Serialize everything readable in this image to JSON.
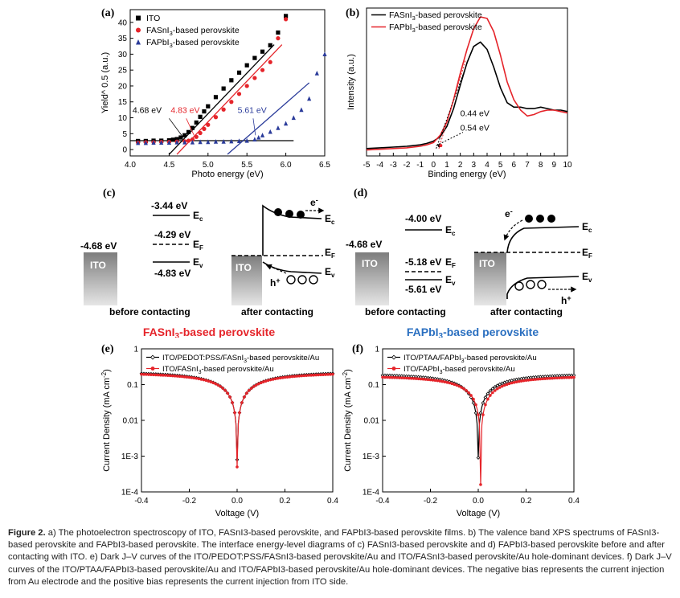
{
  "panels": {
    "a": {
      "label": "(a)",
      "chart_data": {
        "type": "scatter",
        "xlabel": "Photo energy (eV)",
        "ylabel": "Yield^ 0.5 (a.u.)",
        "xlim": [
          4.0,
          6.5
        ],
        "ylim": [
          -2,
          44
        ],
        "xticks": [
          "4.0",
          "4.5",
          "5.0",
          "5.5",
          "6.0",
          "6.5"
        ],
        "yticks": [
          "0",
          "5",
          "10",
          "15",
          "20",
          "25",
          "30",
          "35",
          "40"
        ],
        "legend_position": "top-left",
        "series": [
          {
            "name": "ITO",
            "color": "#000000",
            "marker": "square",
            "x": [
              4.1,
              4.2,
              4.3,
              4.4,
              4.5,
              4.55,
              4.6,
              4.65,
              4.7,
              4.75,
              4.8,
              4.85,
              4.9,
              4.95,
              5.0,
              5.1,
              5.2,
              5.3,
              5.4,
              5.5,
              5.6,
              5.7,
              5.8,
              5.9,
              6.0
            ],
            "y": [
              2.7,
              2.7,
              2.8,
              2.8,
              2.9,
              3.1,
              3.3,
              3.8,
              4.5,
              5.5,
              6.8,
              8.5,
              10.3,
              12.0,
              13.6,
              16.5,
              19.2,
              21.8,
              24.2,
              26.5,
              28.8,
              30.8,
              32.8,
              36.8,
              42.0
            ]
          },
          {
            "name": "FASnI3-based perovskite",
            "color": "#e5242a",
            "marker": "circle",
            "x": [
              4.1,
              4.2,
              4.3,
              4.4,
              4.5,
              4.6,
              4.7,
              4.75,
              4.8,
              4.85,
              4.9,
              4.95,
              5.0,
              5.1,
              5.2,
              5.3,
              5.4,
              5.5,
              5.6,
              5.7,
              5.8,
              5.9,
              6.0
            ],
            "y": [
              2.2,
              2.3,
              2.3,
              2.4,
              2.4,
              2.5,
              2.6,
              2.8,
              3.2,
              4.0,
              5.2,
              6.5,
              7.8,
              10.2,
              12.6,
              15.0,
              17.5,
              20.0,
              22.5,
              25.0,
              27.5,
              35.0,
              41.0
            ]
          },
          {
            "name": "FAPbI3-based perovskite",
            "color": "#2a3b9a",
            "marker": "triangle",
            "x": [
              4.1,
              4.2,
              4.3,
              4.4,
              4.5,
              4.6,
              4.7,
              4.8,
              4.9,
              5.0,
              5.1,
              5.2,
              5.3,
              5.4,
              5.5,
              5.6,
              5.65,
              5.7,
              5.8,
              5.9,
              6.0,
              6.1,
              6.2,
              6.3,
              6.4,
              6.5
            ],
            "y": [
              2.1,
              2.1,
              2.2,
              2.2,
              2.2,
              2.3,
              2.3,
              2.3,
              2.4,
              2.4,
              2.5,
              2.5,
              2.6,
              2.7,
              2.8,
              3.2,
              3.8,
              4.5,
              5.6,
              6.8,
              8.2,
              10.0,
              12.5,
              16.0,
              24.0,
              30.0
            ]
          }
        ],
        "annotations": [
          {
            "text": "4.68 eV",
            "color": "#000000"
          },
          {
            "text": "4.83 eV",
            "color": "#e5242a"
          },
          {
            "text": "5.61 eV",
            "color": "#2a3b9a"
          }
        ]
      }
    },
    "b": {
      "label": "(b)",
      "chart_data": {
        "type": "line",
        "xlabel": "Binding energy (eV)",
        "ylabel": "Intensity (a.u.)",
        "xlim": [
          -5,
          10
        ],
        "ylim": [
          0,
          1.0
        ],
        "xticks": [
          "-5",
          "-4",
          "-3",
          "-2",
          "-1",
          "0",
          "1",
          "2",
          "3",
          "4",
          "5",
          "6",
          "7",
          "8",
          "9",
          "10"
        ],
        "legend_position": "top-left",
        "series": [
          {
            "name": "FASnI3-based perovskite",
            "color": "#000000",
            "x": [
              -5,
              -4,
              -3,
              -2,
              -1,
              -0.5,
              0,
              0.5,
              1,
              1.5,
              2,
              2.5,
              3,
              3.5,
              4,
              4.5,
              5,
              5.5,
              6,
              6.5,
              7,
              7.5,
              8,
              8.5,
              9,
              9.5,
              10
            ],
            "y": [
              0.05,
              0.055,
              0.06,
              0.065,
              0.075,
              0.085,
              0.1,
              0.13,
              0.2,
              0.32,
              0.48,
              0.63,
              0.74,
              0.77,
              0.72,
              0.6,
              0.46,
              0.36,
              0.33,
              0.33,
              0.32,
              0.32,
              0.33,
              0.32,
              0.31,
              0.31,
              0.3
            ]
          },
          {
            "name": "FAPbI3-based perovskite",
            "color": "#e5242a",
            "x": [
              -5,
              -4,
              -3,
              -2,
              -1,
              -0.5,
              0,
              0.5,
              1,
              1.5,
              2,
              2.5,
              3,
              3.5,
              4,
              4.5,
              5,
              5.5,
              6,
              6.5,
              7,
              7.5,
              8,
              8.5,
              9,
              9.5,
              10
            ],
            "y": [
              0.04,
              0.045,
              0.05,
              0.055,
              0.065,
              0.075,
              0.09,
              0.14,
              0.23,
              0.38,
              0.56,
              0.72,
              0.86,
              0.94,
              0.93,
              0.84,
              0.68,
              0.5,
              0.38,
              0.31,
              0.27,
              0.28,
              0.3,
              0.31,
              0.31,
              0.3,
              0.29
            ]
          }
        ],
        "annotations": [
          {
            "text": "0.44 eV",
            "color": "#000000"
          },
          {
            "text": "0.54 eV",
            "color": "#000000"
          }
        ]
      }
    },
    "c": {
      "label": "(c)",
      "ito": "ITO",
      "ito_wf": "-4.68 eV",
      "ec_val": "-3.44 eV",
      "ef_val": "-4.29 eV",
      "ev_val": "-4.83 eV",
      "ec": "E",
      "ec_sub": "c",
      "ef": "E",
      "ef_sub": "F",
      "ev": "E",
      "ev_sub": "v",
      "electron": "e",
      "electron_sup": "-",
      "hole": "h",
      "hole_sup": "+",
      "before": "before contacting",
      "after": "after contacting",
      "title": "FASnI",
      "title_sub": "3",
      "title_rest": "-based perovskite",
      "title_color": "#e5242a"
    },
    "d": {
      "label": "(d)",
      "ito": "ITO",
      "ito_wf": "-4.68 eV",
      "ec_val": "-4.00 eV",
      "ef_val": "-5.18 eV",
      "ev_val": "-5.61 eV",
      "ec": "E",
      "ec_sub": "c",
      "ef": "E",
      "ef_sub": "F",
      "ev": "E",
      "ev_sub": "v",
      "electron": "e",
      "electron_sup": "-",
      "hole": "h",
      "hole_sup": "+",
      "before": "before contacting",
      "after": "after contacting",
      "title": "FAPbI",
      "title_sub": "3",
      "title_rest": "-based  perovskite",
      "title_color": "#2a6fc0"
    },
    "e": {
      "label": "(e)",
      "chart_data": {
        "type": "line",
        "xlabel": "Voltage (V)",
        "ylabel": "Current Density (mA cm-2)",
        "ylabel_main": "Current Density (mA cm",
        "ylabel_sup": "-2",
        "ylabel_close": ")",
        "xlim": [
          -0.4,
          0.4
        ],
        "ylim_log": [
          0.0001,
          1
        ],
        "log_y": true,
        "xticks": [
          "-0.4",
          "-0.2",
          "0.0",
          "0.2",
          "0.4"
        ],
        "yticks": [
          "1",
          "0.1",
          "0.01",
          "1E-3",
          "1E-4"
        ],
        "legend_position": "top-left",
        "series": [
          {
            "name": "ITO/PEDOT:PSS/FASnI3-based perovskite/Au",
            "color": "#000000",
            "v0": 0.0,
            "a": 0.18,
            "k": 4.3,
            "floor": 0.0008,
            "marker": "open-diamond"
          },
          {
            "name": "ITO/FASnI3-based perovskite/Au",
            "color": "#e5242a",
            "v0": 0.0,
            "a": 0.17,
            "k": 4.6,
            "floor": 0.0005,
            "marker": "filled-circle"
          }
        ]
      }
    },
    "f": {
      "label": "(f)",
      "chart_data": {
        "type": "line",
        "xlabel": "Voltage (V)",
        "ylabel": "Current Density (mA cm-2)",
        "ylabel_main": "Current Density (mA cm",
        "ylabel_sup": "-2",
        "ylabel_close": ")",
        "xlim": [
          -0.4,
          0.4
        ],
        "ylim_log": [
          0.0001,
          1
        ],
        "log_y": true,
        "xticks": [
          "-0.4",
          "-0.2",
          "0.0",
          "0.2",
          "0.4"
        ],
        "yticks": [
          "1",
          "0.1",
          "0.01",
          "1E-3",
          "1E-4"
        ],
        "legend_position": "top-left",
        "series": [
          {
            "name": "ITO/PTAA/FAPbI3-based perovskite/Au",
            "color": "#000000",
            "v0": 0.0,
            "a": 0.16,
            "k": 4.8,
            "floor": 0.0009,
            "marker": "open-diamond"
          },
          {
            "name": "ITO/FAPbI3-based perovskite/Au",
            "color": "#e5242a",
            "v0": 0.01,
            "a": 0.14,
            "k": 4.9,
            "floor": 0.00016,
            "marker": "filled-circle"
          }
        ]
      }
    }
  },
  "caption": {
    "label": "Figure 2.",
    "text": "a) The photoelectron spectroscopy of ITO, FASnI3-based perovskite, and FAPbI3-based perovskite films. b) The valence band XPS spectrums of FASnI3-based perovskite and FAPbI3-based perovskite. The interface energy-level diagrams of c) FASnI3-based perovskite and d) FAPbI3-based perovskite before and after contacting with ITO. e) Dark J–V curves of the ITO/PEDOT:PSS/FASnI3-based perovskite/Au and ITO/FASnI3-based perovskite/Au hole-dominant devices. f) Dark J–V curves of the ITO/PTAA/FAPbI3-based perovskite/Au and ITO/FAPbI3-based perovskite/Au hole-dominant devices. The negative bias represents the current injection from Au electrode and the positive bias represents the current injection from ITO side."
  }
}
